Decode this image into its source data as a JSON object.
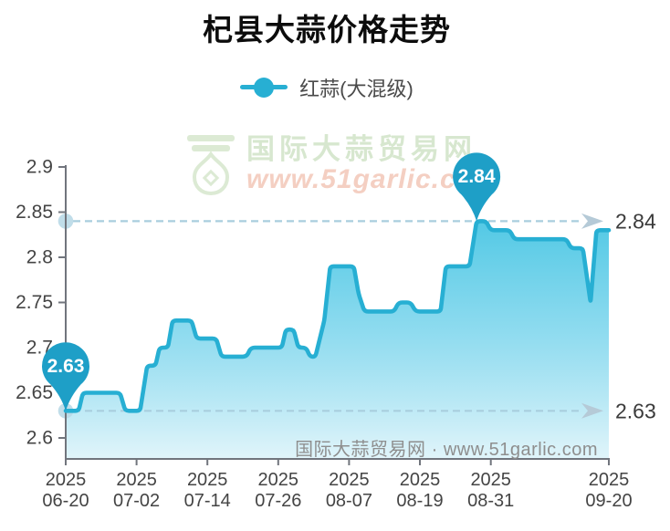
{
  "title": "杞县大蒜价格走势",
  "legend": {
    "label": "红蒜(大混级)"
  },
  "watermark": {
    "site_name": "国际大蒜贸易网",
    "site_url": "www.51garlic.com",
    "footer_text": "国际大蒜贸易网 · www.51garlic.com"
  },
  "chart_data": {
    "type": "area",
    "title": "杞县大蒜价格走势",
    "x_start_label": "2025-06-20",
    "x_span_days": 92,
    "ylim": [
      2.6,
      2.9
    ],
    "grid": "off",
    "legend_position": "top-center",
    "series": [
      {
        "name": "红蒜(大混级)",
        "points": [
          [
            0,
            2.63
          ],
          [
            2.2,
            2.63
          ],
          [
            2.9,
            2.65
          ],
          [
            9.2,
            2.65
          ],
          [
            10.1,
            2.63
          ],
          [
            12.6,
            2.63
          ],
          [
            13.8,
            2.68
          ],
          [
            15.2,
            2.68
          ],
          [
            15.9,
            2.7
          ],
          [
            17.3,
            2.7
          ],
          [
            18.1,
            2.73
          ],
          [
            21.3,
            2.73
          ],
          [
            22.2,
            2.71
          ],
          [
            25.5,
            2.71
          ],
          [
            26.4,
            2.69
          ],
          [
            30.6,
            2.69
          ],
          [
            31.4,
            2.7
          ],
          [
            36.6,
            2.7
          ],
          [
            37.3,
            2.72
          ],
          [
            38.6,
            2.72
          ],
          [
            39.4,
            2.7
          ],
          [
            40.7,
            2.7
          ],
          [
            41.4,
            2.69
          ],
          [
            42.3,
            2.69
          ],
          [
            43.8,
            2.73
          ],
          [
            44.8,
            2.79
          ],
          [
            48.8,
            2.79
          ],
          [
            49.6,
            2.76
          ],
          [
            50.6,
            2.74
          ],
          [
            55.6,
            2.74
          ],
          [
            56.4,
            2.75
          ],
          [
            58.4,
            2.75
          ],
          [
            59.3,
            2.74
          ],
          [
            63.5,
            2.74
          ],
          [
            64.4,
            2.79
          ],
          [
            68.4,
            2.79
          ],
          [
            69.6,
            2.84
          ],
          [
            71.2,
            2.84
          ],
          [
            72,
            2.83
          ],
          [
            75.2,
            2.83
          ],
          [
            76,
            2.82
          ],
          [
            84.8,
            2.82
          ],
          [
            85.6,
            2.81
          ],
          [
            87.6,
            2.81
          ],
          [
            88.9,
            2.75
          ],
          [
            89.9,
            2.83
          ],
          [
            92,
            2.83
          ]
        ]
      }
    ],
    "x_ticks": [
      {
        "day": 0,
        "line1": "2025",
        "line2": "06-20"
      },
      {
        "day": 12,
        "line1": "2025",
        "line2": "07-02"
      },
      {
        "day": 24,
        "line1": "2025",
        "line2": "07-14"
      },
      {
        "day": 36,
        "line1": "2025",
        "line2": "07-26"
      },
      {
        "day": 48,
        "line1": "2025",
        "line2": "08-07"
      },
      {
        "day": 60,
        "line1": "2025",
        "line2": "08-19"
      },
      {
        "day": 72,
        "line1": "2025",
        "line2": "08-31"
      },
      {
        "day": 92,
        "line1": "2025",
        "line2": "09-20"
      }
    ],
    "y_ticks": [
      {
        "value": 2.6,
        "label": "2.6"
      },
      {
        "value": 2.65,
        "label": "2.65"
      },
      {
        "value": 2.7,
        "label": "2.7"
      },
      {
        "value": 2.75,
        "label": "2.75"
      },
      {
        "value": 2.8,
        "label": "2.8"
      },
      {
        "value": 2.85,
        "label": "2.85"
      },
      {
        "value": 2.9,
        "label": "2.9"
      }
    ],
    "reference_lines": [
      {
        "value": 2.84,
        "label": "2.84",
        "position": "right"
      },
      {
        "value": 2.63,
        "label": "2.63",
        "position": "right"
      }
    ],
    "markers": [
      {
        "day": 0,
        "value": 2.63,
        "label": "2.63"
      },
      {
        "day": 69.6,
        "value": 2.84,
        "label": "2.84"
      }
    ],
    "colors": {
      "line": "#27afd3",
      "balloon": "#1e9fc7",
      "balloon_text": "#ffffff",
      "dash": "#a9cede",
      "arrow": "#b5cad7",
      "axis": "#71757d",
      "dot": "#b9d9e7",
      "area_top": "rgba(64,195,226,0.90)",
      "area_mid": "rgba(120,212,236,0.85)",
      "area_bottom": "rgba(223,244,250,0.95)",
      "tick_text": "#444444",
      "ref_label_text": "#3b3b3b"
    }
  }
}
